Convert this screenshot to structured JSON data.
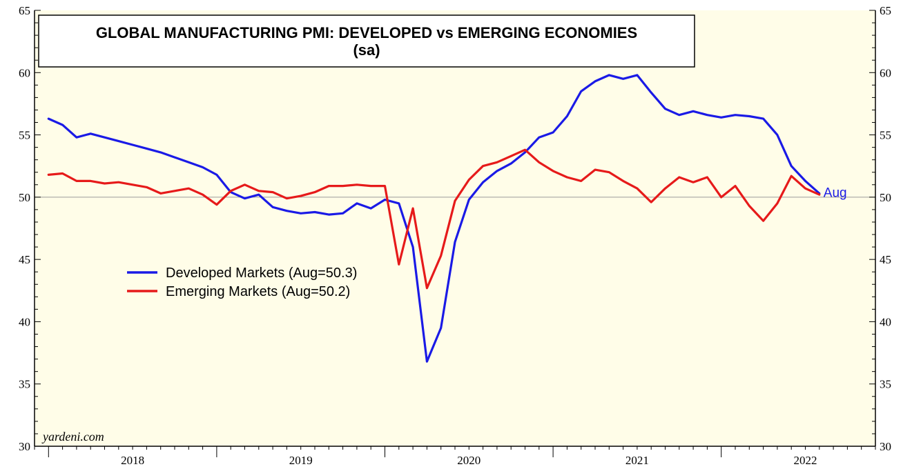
{
  "chart_data": {
    "type": "line",
    "title": "GLOBAL MANUFACTURING PMI: DEVELOPED vs EMERGING ECONOMIES",
    "subtitle": "(sa)",
    "ylim": [
      30,
      65
    ],
    "yticks": [
      "30",
      "35",
      "40",
      "45",
      "50",
      "55",
      "60",
      "65"
    ],
    "xlim": [
      "2017-12",
      "2022-12"
    ],
    "year_labels": [
      "2018",
      "2019",
      "2020",
      "2021",
      "2022"
    ],
    "reference_line": 50,
    "source": "yardeni.com",
    "end_label": "Aug",
    "legend": {
      "position": "middle-left"
    },
    "colors": {
      "background": "#fffde8",
      "developed": "#1a1ae6",
      "emerging": "#e61a1a",
      "reference": "#9a9a9a"
    },
    "series": [
      {
        "name": "Developed Markets (Aug=50.3)",
        "color": "#1a1ae6",
        "x": [
          "2018-01",
          "2018-02",
          "2018-03",
          "2018-04",
          "2018-05",
          "2018-06",
          "2018-07",
          "2018-08",
          "2018-09",
          "2018-10",
          "2018-11",
          "2018-12",
          "2019-01",
          "2019-02",
          "2019-03",
          "2019-04",
          "2019-05",
          "2019-06",
          "2019-07",
          "2019-08",
          "2019-09",
          "2019-10",
          "2019-11",
          "2019-12",
          "2020-01",
          "2020-02",
          "2020-03",
          "2020-04",
          "2020-05",
          "2020-06",
          "2020-07",
          "2020-08",
          "2020-09",
          "2020-10",
          "2020-11",
          "2020-12",
          "2021-01",
          "2021-02",
          "2021-03",
          "2021-04",
          "2021-05",
          "2021-06",
          "2021-07",
          "2021-08",
          "2021-09",
          "2021-10",
          "2021-11",
          "2021-12",
          "2022-01",
          "2022-02",
          "2022-03",
          "2022-04",
          "2022-05",
          "2022-06",
          "2022-07",
          "2022-08"
        ],
        "values": [
          56.3,
          55.8,
          54.8,
          55.1,
          54.8,
          54.5,
          54.2,
          53.9,
          53.6,
          53.2,
          52.8,
          52.4,
          51.8,
          50.4,
          49.9,
          50.2,
          49.2,
          48.9,
          48.7,
          48.8,
          48.6,
          48.7,
          49.5,
          49.1,
          49.8,
          49.5,
          46.0,
          36.8,
          39.5,
          46.4,
          49.8,
          51.2,
          52.1,
          52.7,
          53.6,
          54.8,
          55.2,
          56.5,
          58.5,
          59.3,
          59.8,
          59.5,
          59.8,
          58.4,
          57.1,
          56.6,
          56.9,
          56.6,
          56.4,
          56.6,
          56.5,
          56.3,
          55.0,
          52.5,
          51.3,
          50.3
        ]
      },
      {
        "name": "Emerging Markets (Aug=50.2)",
        "color": "#e61a1a",
        "x": [
          "2018-01",
          "2018-02",
          "2018-03",
          "2018-04",
          "2018-05",
          "2018-06",
          "2018-07",
          "2018-08",
          "2018-09",
          "2018-10",
          "2018-11",
          "2018-12",
          "2019-01",
          "2019-02",
          "2019-03",
          "2019-04",
          "2019-05",
          "2019-06",
          "2019-07",
          "2019-08",
          "2019-09",
          "2019-10",
          "2019-11",
          "2019-12",
          "2020-01",
          "2020-02",
          "2020-03",
          "2020-04",
          "2020-05",
          "2020-06",
          "2020-07",
          "2020-08",
          "2020-09",
          "2020-10",
          "2020-11",
          "2020-12",
          "2021-01",
          "2021-02",
          "2021-03",
          "2021-04",
          "2021-05",
          "2021-06",
          "2021-07",
          "2021-08",
          "2021-09",
          "2021-10",
          "2021-11",
          "2021-12",
          "2022-01",
          "2022-02",
          "2022-03",
          "2022-04",
          "2022-05",
          "2022-06",
          "2022-07",
          "2022-08"
        ],
        "values": [
          51.8,
          51.9,
          51.3,
          51.3,
          51.1,
          51.2,
          51.0,
          50.8,
          50.3,
          50.5,
          50.7,
          50.2,
          49.4,
          50.5,
          51.0,
          50.5,
          50.4,
          49.9,
          50.1,
          50.4,
          50.9,
          50.9,
          51.0,
          50.9,
          50.9,
          44.6,
          49.1,
          42.7,
          45.3,
          49.7,
          51.4,
          52.5,
          52.8,
          53.3,
          53.8,
          52.8,
          52.1,
          51.6,
          51.3,
          52.2,
          52.0,
          51.3,
          50.7,
          49.6,
          50.7,
          51.6,
          51.2,
          51.6,
          50.0,
          50.9,
          49.3,
          48.1,
          49.5,
          51.7,
          50.7,
          50.2
        ]
      }
    ]
  }
}
